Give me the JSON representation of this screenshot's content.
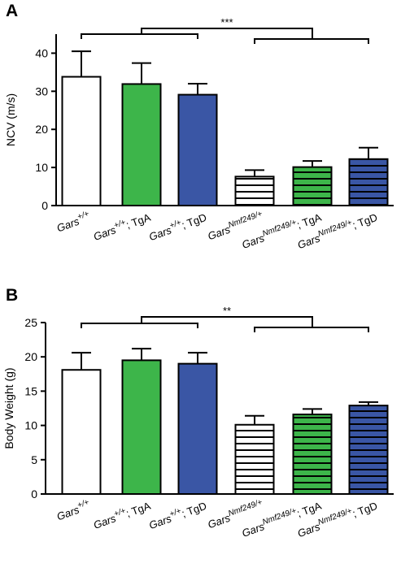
{
  "colors": {
    "wt": "#ffffff",
    "tgA": "#3db54a",
    "tgD": "#3a56a5",
    "stroke": "#000000"
  },
  "chart_data": [
    {
      "type": "bar",
      "panel_label": "A",
      "ylabel": "NCV (m/s)",
      "ylim": [
        0,
        45
      ],
      "yticks": [
        0,
        10,
        20,
        30,
        40
      ],
      "categories": [
        {
          "base": "Gars",
          "sup": "+/+",
          "suffix": ""
        },
        {
          "base": "Gars",
          "sup": "+/+",
          "suffix": "; TgA"
        },
        {
          "base": "Gars",
          "sup": "+/+",
          "suffix": "; TgD"
        },
        {
          "base": "Gars",
          "sup": "Nmf249/+",
          "suffix": ""
        },
        {
          "base": "Gars",
          "sup": "Nmf249/+",
          "suffix": "; TgA"
        },
        {
          "base": "Gars",
          "sup": "Nmf249/+",
          "suffix": "; TgD"
        }
      ],
      "values": [
        33.8,
        31.9,
        29.1,
        7.6,
        10.1,
        12.2
      ],
      "errors": [
        6.7,
        5.5,
        2.9,
        1.7,
        1.6,
        3.0
      ],
      "fills": [
        "white",
        "green",
        "blue",
        "white-striped",
        "green-striped",
        "blue-striped"
      ],
      "significance": {
        "label": "***",
        "left_group": [
          0,
          1,
          2
        ],
        "right_group": [
          3,
          4,
          5
        ]
      }
    },
    {
      "type": "bar",
      "panel_label": "B",
      "ylabel": "Body Weight (g)",
      "ylim": [
        0,
        25
      ],
      "yticks": [
        0,
        5,
        10,
        15,
        20,
        25
      ],
      "categories": [
        {
          "base": "Gars",
          "sup": "+/+",
          "suffix": ""
        },
        {
          "base": "Gars",
          "sup": "+/+",
          "suffix": "; TgA"
        },
        {
          "base": "Gars",
          "sup": "+/+",
          "suffix": "; TgD"
        },
        {
          "base": "Gars",
          "sup": "Nmf249/+",
          "suffix": ""
        },
        {
          "base": "Gars",
          "sup": "Nmf249/+",
          "suffix": "; TgA"
        },
        {
          "base": "Gars",
          "sup": "Nmf249/+",
          "suffix": "; TgD"
        }
      ],
      "values": [
        18.1,
        19.5,
        19.0,
        10.1,
        11.6,
        12.9
      ],
      "errors": [
        2.5,
        1.7,
        1.6,
        1.3,
        0.8,
        0.5
      ],
      "fills": [
        "white",
        "green",
        "blue",
        "white-striped",
        "green-striped",
        "blue-striped"
      ],
      "significance": {
        "label": "**",
        "left_group": [
          0,
          1,
          2
        ],
        "right_group": [
          3,
          4,
          5
        ]
      }
    }
  ]
}
